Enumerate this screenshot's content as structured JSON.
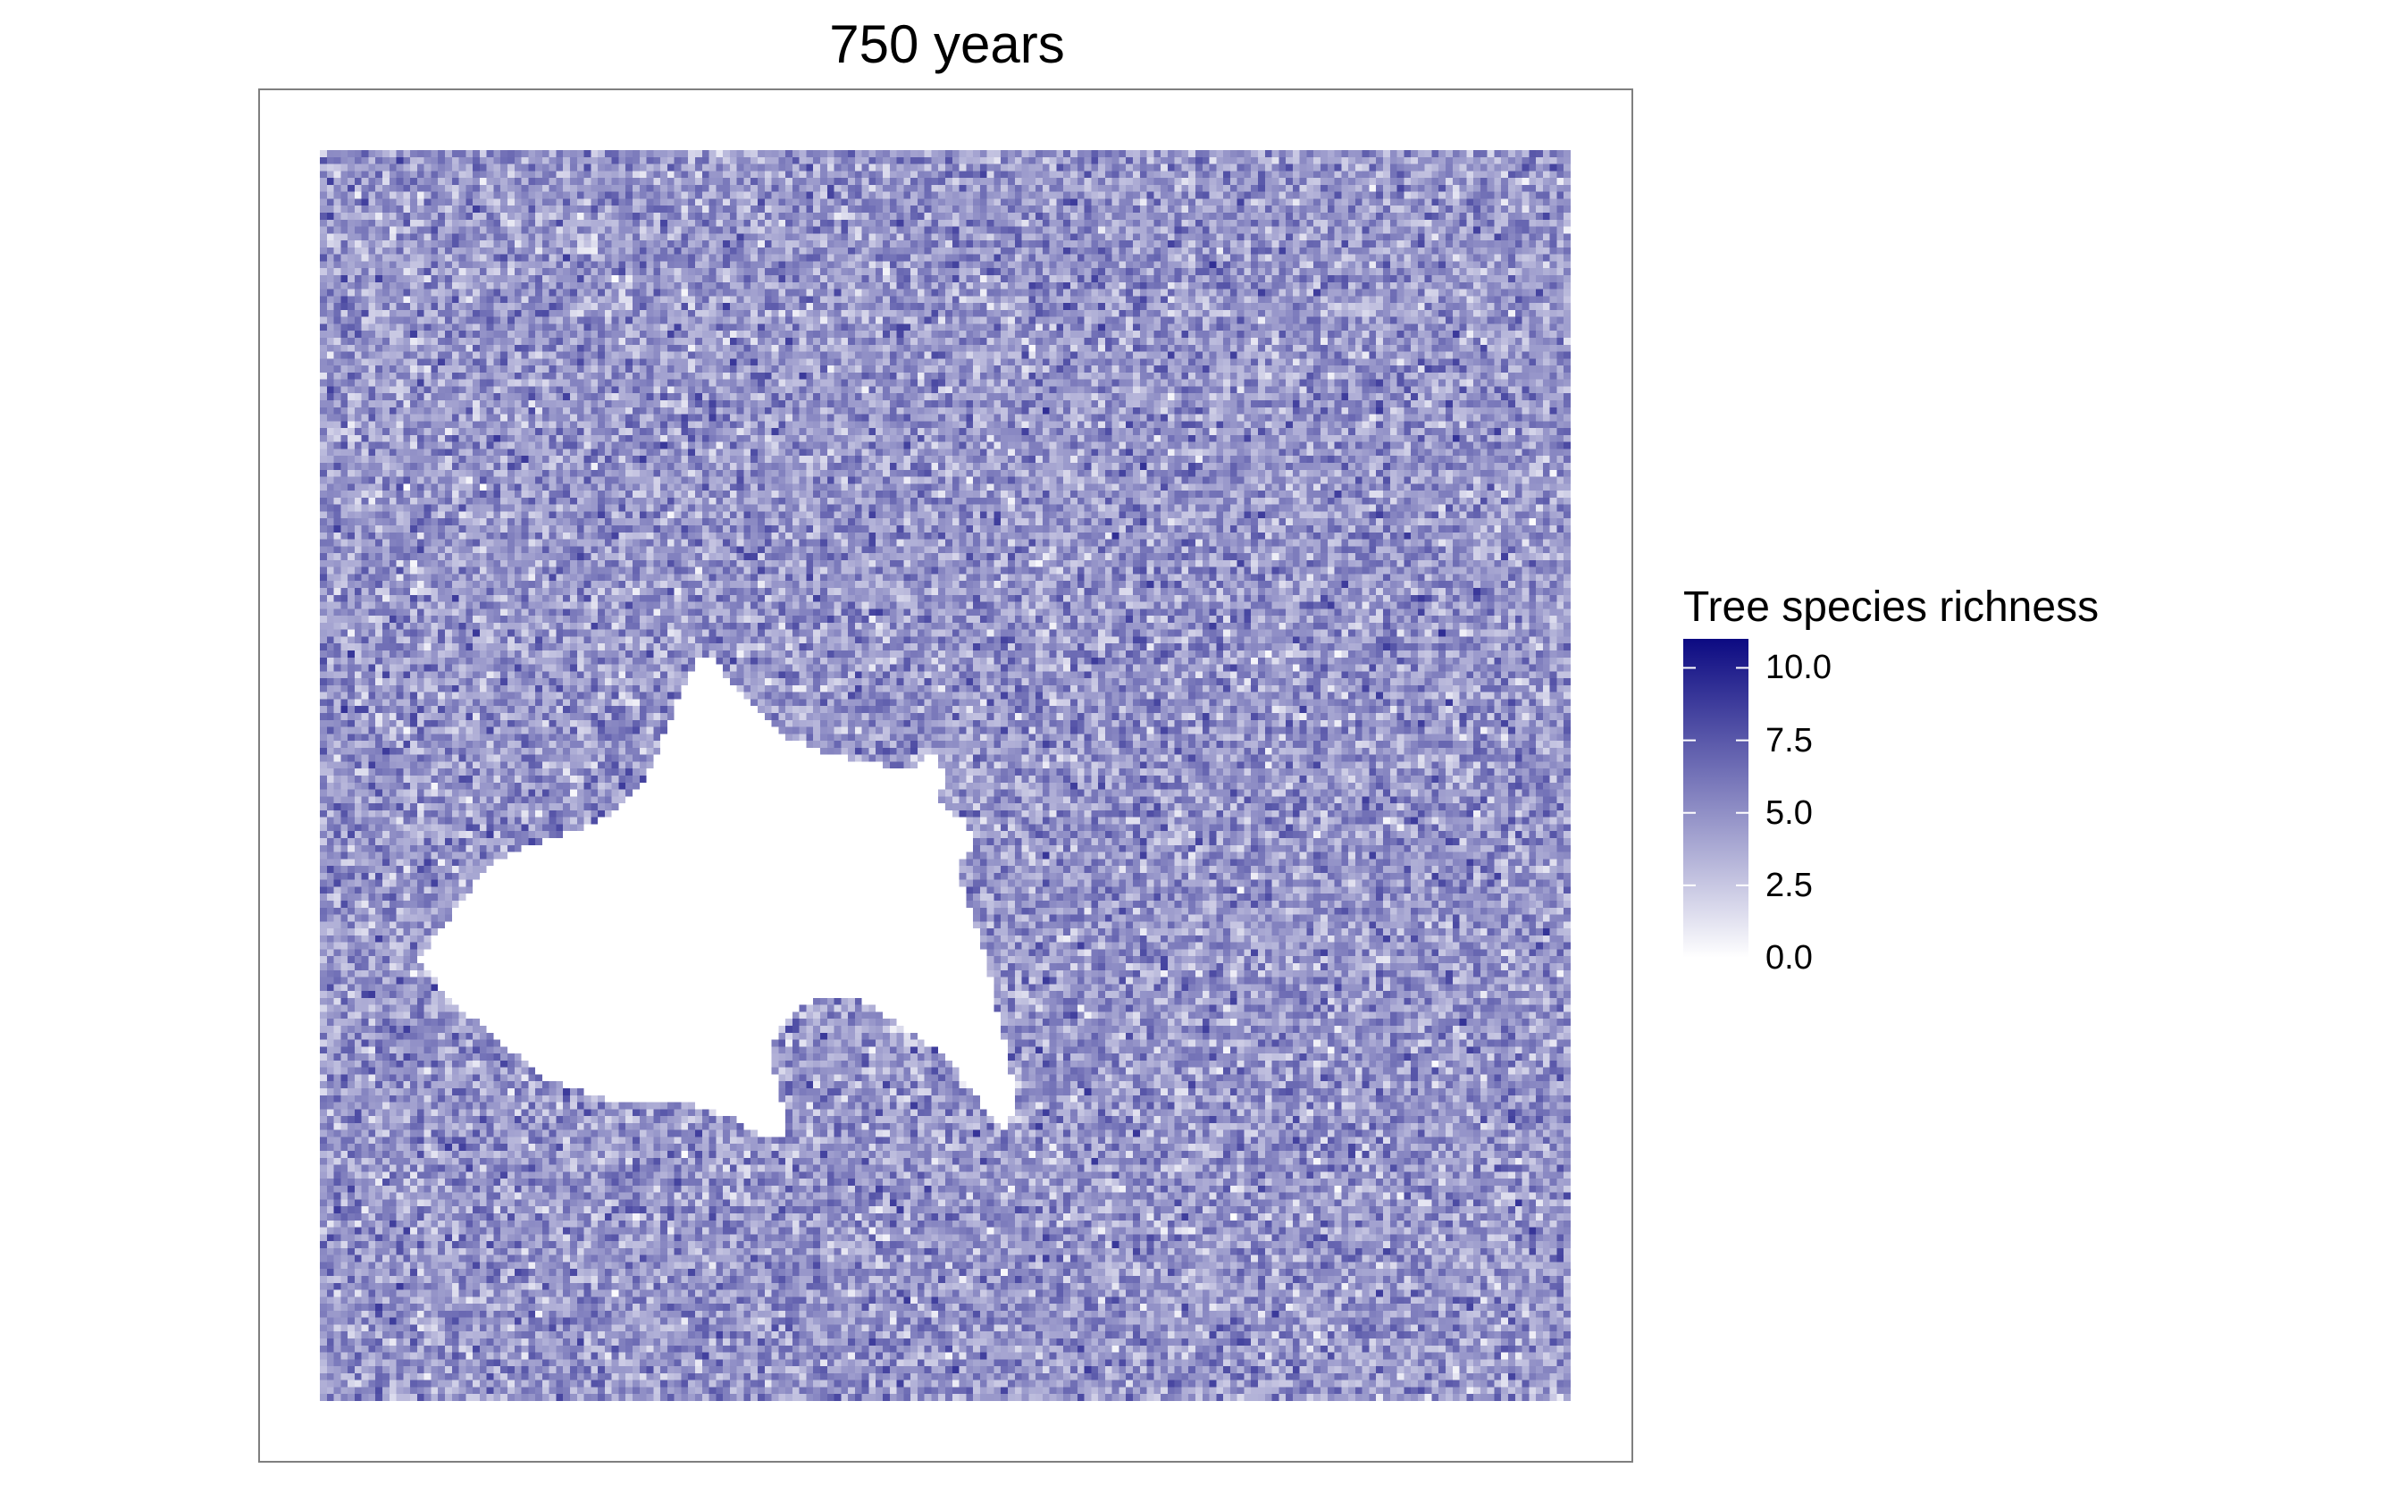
{
  "title": "750 years",
  "legend": {
    "title": "Tree species richness",
    "labels": [
      "10.0",
      "7.5",
      "5.0",
      "2.5",
      "0.0"
    ],
    "values": [
      10.0,
      7.5,
      5.0,
      2.5,
      0.0
    ],
    "min": 0.0,
    "max": 11.0,
    "color_low": "#ffffff",
    "color_high": "#0c0a82"
  },
  "map": {
    "type": "raster",
    "grid": [
      180,
      180
    ],
    "fill_mean": 4.7,
    "no_data_color": "#ffffff",
    "panel_border_color": "#7f7f7f"
  }
}
